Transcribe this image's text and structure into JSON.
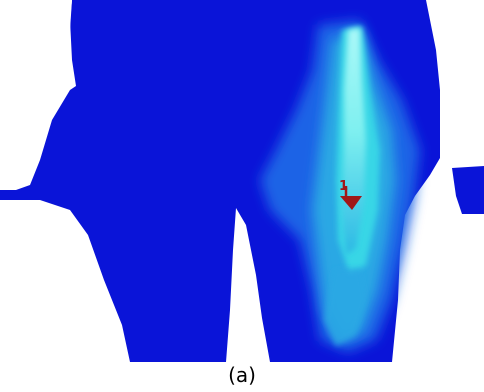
{
  "figure": {
    "caption": "(a)",
    "marker_label": "1",
    "colors": {
      "background": "#0a14d8",
      "outer_glow": "#1f63e6",
      "mid_glow": "#2aa8e4",
      "inner_glow": "#38d6e6",
      "core": "#9cf4f4",
      "marker": "#a01818",
      "gap": "#ffffff"
    }
  }
}
